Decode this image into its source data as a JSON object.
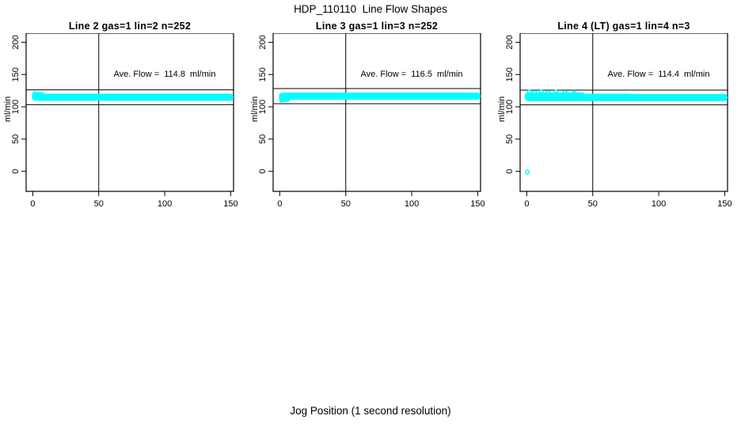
{
  "title": "HDP_110110  Line Flow Shapes",
  "xlabel": "Jog Position (1 second resolution)",
  "accent_color": "#00FFFF",
  "line_color": "#000000",
  "background_color": "#FFFFFF",
  "chart_data": [
    {
      "type": "scatter",
      "title": "Line 2 gas=1 lin=2 n=252",
      "ylabel": "ml/min",
      "annotation": "Ave. Flow =  114.8  ml/min",
      "ave_flow_ml_min": 114.8,
      "n_points": 252,
      "x_ticks": [
        0,
        50,
        100,
        150
      ],
      "y_ticks": [
        0,
        50,
        100,
        150,
        200
      ],
      "xlim": [
        -5,
        152
      ],
      "ylim": [
        -31,
        214
      ],
      "grid": false,
      "v_ref_line_x": 50,
      "h_ref_lines_y": [
        126.3,
        103.3
      ],
      "marker": "open-circle",
      "series_summary": "flat band of ~252 overlapping cyan points from x=1 to x=150 at ~115 ml/min, first point slightly high",
      "band_segments": [
        {
          "x1": 2,
          "x2": 149.5,
          "y": 114.8,
          "w": 9
        },
        {
          "x1": 1.5,
          "x2": 7,
          "y": 118.5,
          "w": 7
        }
      ],
      "extra_points": [
        {
          "x": 1.5,
          "y": 120
        }
      ]
    },
    {
      "type": "scatter",
      "title": "Line 3 gas=1 lin=3 n=252",
      "ylabel": "ml/min",
      "annotation": "Ave. Flow =  116.5  ml/min",
      "ave_flow_ml_min": 116.5,
      "n_points": 252,
      "x_ticks": [
        0,
        50,
        100,
        150
      ],
      "y_ticks": [
        0,
        50,
        100,
        150,
        200
      ],
      "xlim": [
        -5,
        152
      ],
      "ylim": [
        -31,
        214
      ],
      "grid": false,
      "v_ref_line_x": 50,
      "h_ref_lines_y": [
        128.2,
        104.9
      ],
      "marker": "open-circle",
      "series_summary": "flat band of ~252 overlapping cyan points from x=1 to x=150 at ~116.5 ml/min, first point slightly low",
      "band_segments": [
        {
          "x1": 2,
          "x2": 149.5,
          "y": 116.5,
          "w": 9
        },
        {
          "x1": 1.5,
          "x2": 6,
          "y": 112,
          "w": 7
        }
      ],
      "extra_points": [
        {
          "x": 1.5,
          "y": 110
        }
      ]
    },
    {
      "type": "scatter",
      "title": "Line 4 (LT) gas=1 lin=4 n=3",
      "ylabel": "ml/min",
      "annotation": "Ave. Flow =  114.4  ml/min",
      "ave_flow_ml_min": 114.4,
      "n_points": 3,
      "x_ticks": [
        0,
        50,
        100,
        150
      ],
      "y_ticks": [
        0,
        50,
        100,
        150,
        200
      ],
      "xlim": [
        -5,
        152
      ],
      "ylim": [
        -31,
        214
      ],
      "grid": false,
      "v_ref_line_x": 50,
      "h_ref_lines_y": [
        125.8,
        103.0
      ],
      "marker": "open-circle",
      "series_summary": "flat band of overlapping cyan points at ~114 ml/min, noisier on left half with bumps touching the upper reference line, plus one isolated point near (0,0)",
      "band_segments": [
        {
          "x1": 1,
          "x2": 149.5,
          "y": 114.4,
          "w": 9
        },
        {
          "x1": 1,
          "x2": 42,
          "y": 117.5,
          "w": 8
        },
        {
          "x1": 42,
          "x2": 78,
          "y": 116,
          "w": 7
        }
      ],
      "extra_points": [
        {
          "x": 0.5,
          "y": -1
        },
        {
          "x": 2,
          "y": 123
        },
        {
          "x": 6,
          "y": 122
        },
        {
          "x": 11,
          "y": 123
        },
        {
          "x": 16,
          "y": 122
        },
        {
          "x": 22,
          "y": 123
        },
        {
          "x": 29,
          "y": 122
        },
        {
          "x": 36,
          "y": 121
        }
      ]
    }
  ]
}
